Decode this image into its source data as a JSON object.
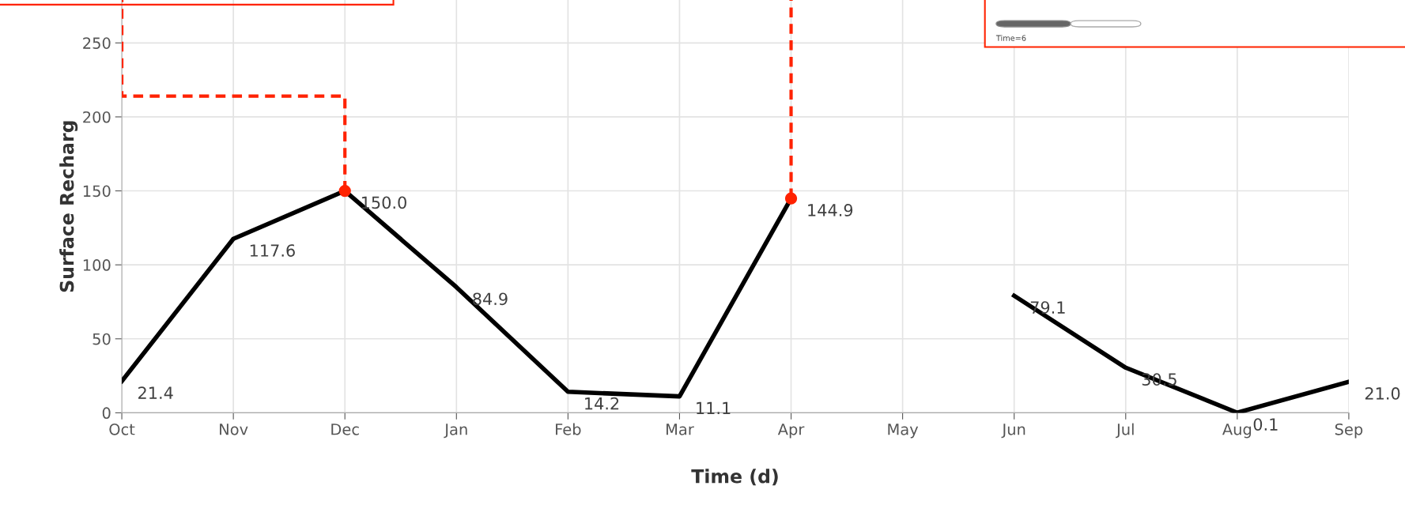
{
  "chart_data": {
    "type": "line",
    "xlabel": "Time (d)",
    "ylabel": "Surface Recharg",
    "categories": [
      "Oct",
      "Nov",
      "Dec",
      "Jan",
      "Feb",
      "Mar",
      "Apr",
      "May",
      "Jun",
      "Jul",
      "Aug",
      "Sep"
    ],
    "series": [
      {
        "color": "#000000",
        "values": [
          21.4,
          117.6,
          150.0,
          84.9,
          14.2,
          11.1,
          144.9,
          null,
          79.1,
          30.5,
          0.1,
          21.0
        ],
        "value_labels": [
          "21.4",
          "117.6",
          "150.0",
          "84.9",
          "14.2",
          "11.1",
          "144.9",
          null,
          "79.1",
          "30.5",
          "0.1",
          "21.0"
        ]
      }
    ],
    "ylim": [
      0,
      279
    ],
    "yticks": [
      0,
      50,
      100,
      150,
      200,
      250
    ],
    "grid": true,
    "marker": "none",
    "line_style": "solid",
    "annotations": [
      "Time=6"
    ]
  }
}
